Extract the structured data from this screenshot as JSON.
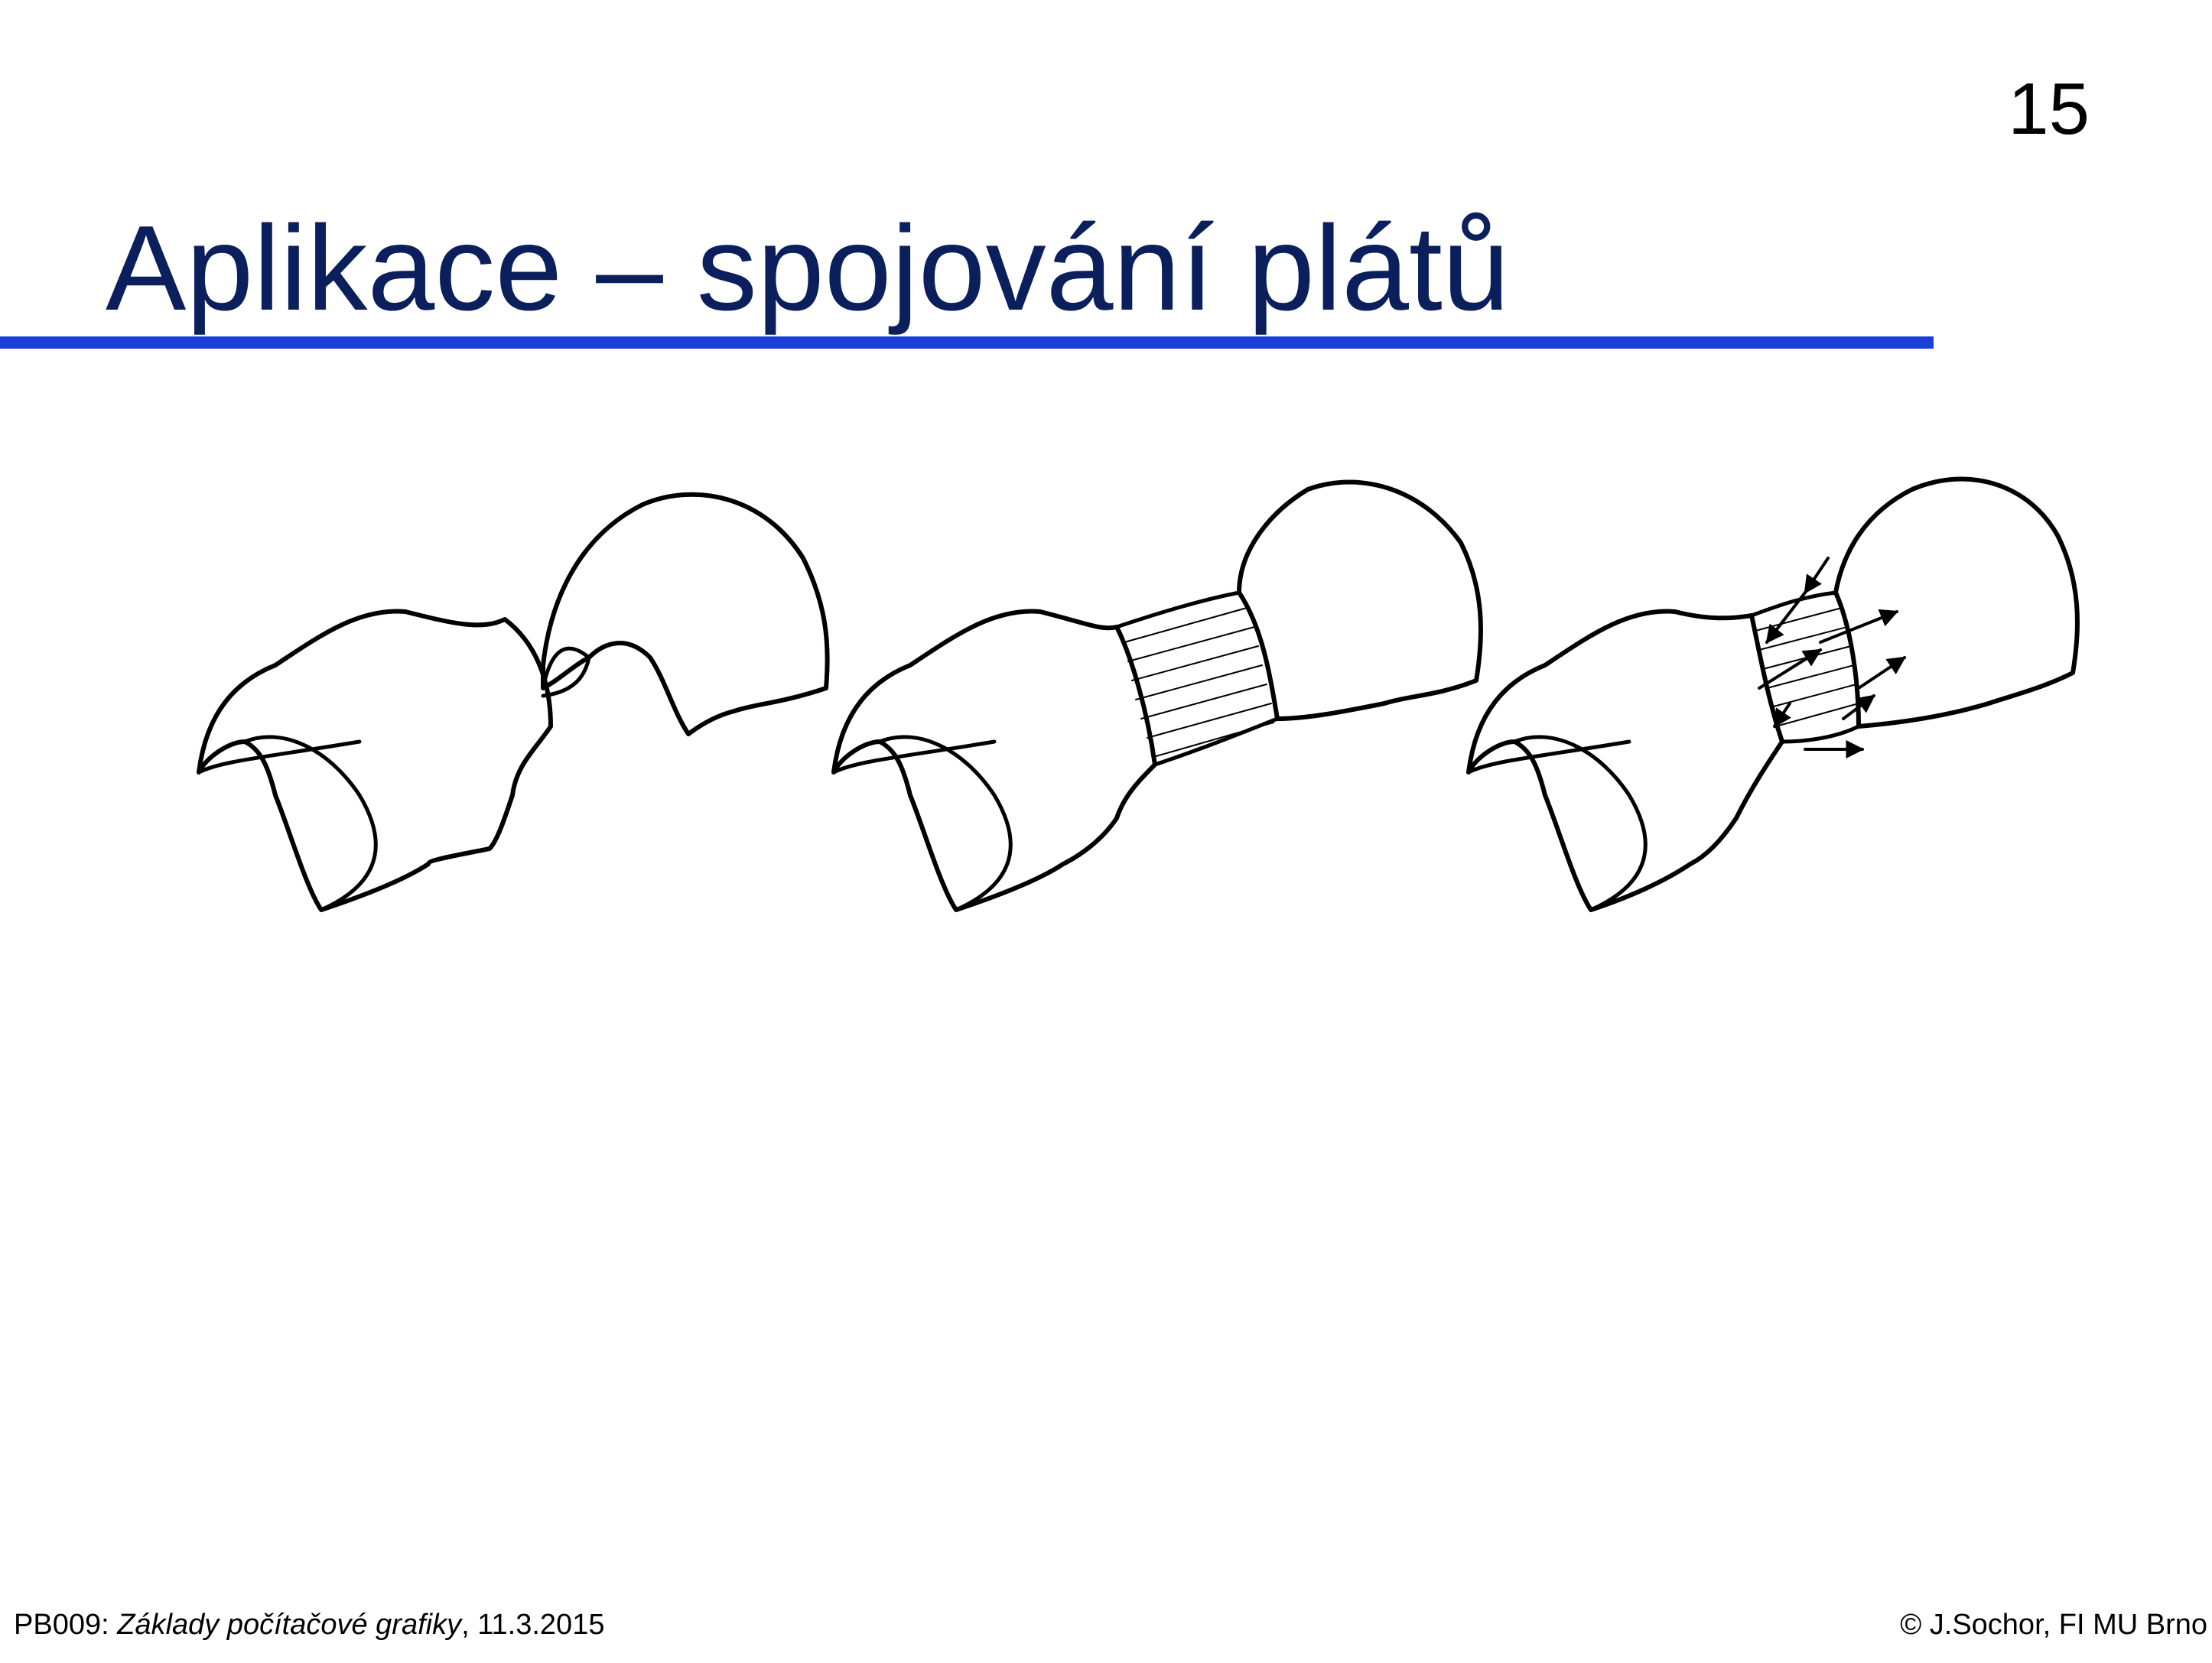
{
  "slide": {
    "page_number": "15",
    "title": "Aplikace – spojování plátů"
  },
  "figure": {
    "panels": [
      {
        "name": "separate-patches"
      },
      {
        "name": "joined-with-blend"
      },
      {
        "name": "blend-with-tangent-vectors"
      }
    ]
  },
  "footer": {
    "course": "PB009: ",
    "course_title": "Základy počítačové grafiky",
    "date": ", 11.3.2015",
    "copyright": "© J.Sochor, FI MU Brno"
  },
  "colors": {
    "title": "#0b1f5c",
    "rule": "#1a3fd8",
    "text": "#000000"
  }
}
